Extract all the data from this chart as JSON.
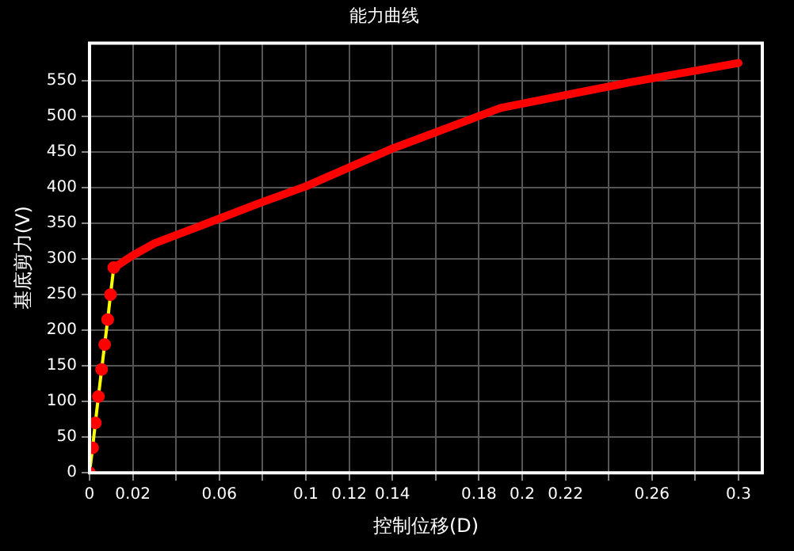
{
  "chart_data": {
    "type": "line",
    "title": "能力曲线",
    "xlabel": "控制位移(D)",
    "ylabel": "基底剪力(V)",
    "xlim": [
      0,
      0.311
    ],
    "ylim": [
      0,
      603
    ],
    "xticks": [
      0,
      0.02,
      {
        "value": 0.04,
        "label": null
      },
      0.06,
      {
        "value": 0.08,
        "label": null
      },
      0.1,
      0.12,
      0.14,
      {
        "value": 0.16,
        "label": null
      },
      0.18,
      0.2,
      0.22,
      {
        "value": 0.24,
        "label": null
      },
      0.26,
      {
        "value": 0.28,
        "label": null
      },
      0.3
    ],
    "yticks": [
      0,
      50,
      100,
      150,
      200,
      250,
      300,
      350,
      400,
      450,
      500,
      550
    ],
    "grid": true,
    "legend": false,
    "series": [
      {
        "color": "#ffff00",
        "marker": "circle",
        "x": [
          0,
          0.0014,
          0.0027,
          0.0041,
          0.0056,
          0.007,
          0.0084,
          0.0097,
          0.0112
        ],
        "values": [
          0,
          35,
          70,
          107,
          145,
          180,
          215,
          250,
          288
        ]
      },
      {
        "color": "#ff0000",
        "marker": "none",
        "x": [
          0.0112,
          0.0125,
          0.02,
          0.03,
          0.05,
          0.08,
          0.1,
          0.14,
          0.19,
          0.25,
          0.3
        ],
        "values": [
          288,
          290,
          305,
          322,
          345,
          380,
          402,
          455,
          512,
          548,
          575
        ]
      }
    ]
  }
}
